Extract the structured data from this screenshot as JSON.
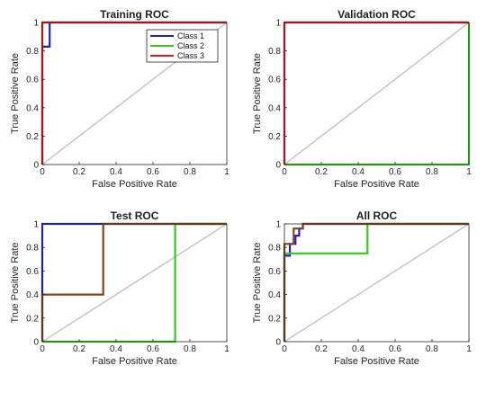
{
  "chart_data": [
    {
      "type": "line",
      "title": "Training ROC",
      "xlabel": "False Positive Rate",
      "ylabel": "True Positive Rate",
      "xlim": [
        0,
        1
      ],
      "ylim": [
        0,
        1
      ],
      "xticks": [
        "0",
        "0.2",
        "0.4",
        "0.6",
        "0.8",
        "1"
      ],
      "yticks": [
        "0",
        "0.2",
        "0.4",
        "0.6",
        "0.8",
        "1"
      ],
      "grid": false,
      "legend": "top-right",
      "series": [
        {
          "name": "Class 1",
          "color": "#1f1fd6",
          "points": [
            [
              0,
              0
            ],
            [
              0,
              0.83
            ],
            [
              0.04,
              0.83
            ],
            [
              0.04,
              1
            ],
            [
              1,
              1
            ]
          ]
        },
        {
          "name": "Class 2",
          "color": "#33cc1a",
          "points": [
            [
              0,
              0
            ],
            [
              0,
              1
            ],
            [
              1,
              1
            ]
          ]
        },
        {
          "name": "Class 3",
          "color": "#e8191e",
          "points": [
            [
              0,
              0
            ],
            [
              0,
              1
            ],
            [
              1,
              1
            ]
          ]
        }
      ]
    },
    {
      "type": "line",
      "title": "Validation ROC",
      "xlabel": "False Positive Rate",
      "ylabel": "True Positive Rate",
      "xlim": [
        0,
        1
      ],
      "ylim": [
        0,
        1
      ],
      "xticks": [
        "0",
        "0.2",
        "0.4",
        "0.6",
        "0.8",
        "1"
      ],
      "yticks": [
        "0",
        "0.2",
        "0.4",
        "0.6",
        "0.8",
        "1"
      ],
      "grid": false,
      "series": [
        {
          "name": "Class 1",
          "color": "#1f1fd6",
          "points": [
            [
              0,
              0
            ],
            [
              0,
              1
            ],
            [
              1,
              1
            ]
          ]
        },
        {
          "name": "Class 2",
          "color": "#33cc1a",
          "points": [
            [
              0,
              0
            ],
            [
              1,
              0
            ],
            [
              1,
              1
            ]
          ]
        },
        {
          "name": "Class 3",
          "color": "#e8191e",
          "points": [
            [
              0,
              0
            ],
            [
              0,
              1
            ],
            [
              1,
              1
            ]
          ]
        }
      ]
    },
    {
      "type": "line",
      "title": "Test ROC",
      "xlabel": "False Positive Rate",
      "ylabel": "True Positive Rate",
      "xlim": [
        0,
        1
      ],
      "ylim": [
        0,
        1
      ],
      "xticks": [
        "0",
        "0.2",
        "0.4",
        "0.6",
        "0.8",
        "1"
      ],
      "yticks": [
        "0",
        "0.2",
        "0.4",
        "0.6",
        "0.8",
        "1"
      ],
      "grid": false,
      "series": [
        {
          "name": "Class 1",
          "color": "#1f1fd6",
          "points": [
            [
              0,
              0
            ],
            [
              0,
              1
            ],
            [
              1,
              1
            ]
          ]
        },
        {
          "name": "Class 2",
          "color": "#33cc1a",
          "points": [
            [
              0,
              0
            ],
            [
              0.72,
              0
            ],
            [
              0.72,
              1
            ],
            [
              1,
              1
            ]
          ]
        },
        {
          "name": "Class 3",
          "color": "#8b4513",
          "points": [
            [
              0,
              0
            ],
            [
              0,
              0.4
            ],
            [
              0.33,
              0.4
            ],
            [
              0.33,
              1
            ],
            [
              1,
              1
            ]
          ]
        }
      ]
    },
    {
      "type": "line",
      "title": "All ROC",
      "xlabel": "False Positive Rate",
      "ylabel": "True Positive Rate",
      "xlim": [
        0,
        1
      ],
      "ylim": [
        0,
        1
      ],
      "xticks": [
        "0",
        "0.2",
        "0.4",
        "0.6",
        "0.8",
        "1"
      ],
      "yticks": [
        "0",
        "0.2",
        "0.4",
        "0.6",
        "0.8",
        "1"
      ],
      "grid": false,
      "series": [
        {
          "name": "Class 1",
          "color": "#1f1fd6",
          "points": [
            [
              0,
              0
            ],
            [
              0,
              0.73
            ],
            [
              0.03,
              0.73
            ],
            [
              0.03,
              0.83
            ],
            [
              0.06,
              0.83
            ],
            [
              0.06,
              0.9
            ],
            [
              0.08,
              0.9
            ],
            [
              0.08,
              0.96
            ],
            [
              0.1,
              0.96
            ],
            [
              0.1,
              1
            ],
            [
              1,
              1
            ]
          ]
        },
        {
          "name": "Class 2",
          "color": "#33cc1a",
          "points": [
            [
              0,
              0
            ],
            [
              0,
              0.75
            ],
            [
              0.45,
              0.75
            ],
            [
              0.45,
              1
            ],
            [
              1,
              1
            ]
          ]
        },
        {
          "name": "Class 3",
          "color": "#8b4513",
          "points": [
            [
              0,
              0
            ],
            [
              0,
              0.83
            ],
            [
              0.05,
              0.83
            ],
            [
              0.05,
              0.96
            ],
            [
              0.1,
              0.96
            ],
            [
              0.1,
              1
            ],
            [
              1,
              1
            ]
          ]
        }
      ]
    }
  ]
}
